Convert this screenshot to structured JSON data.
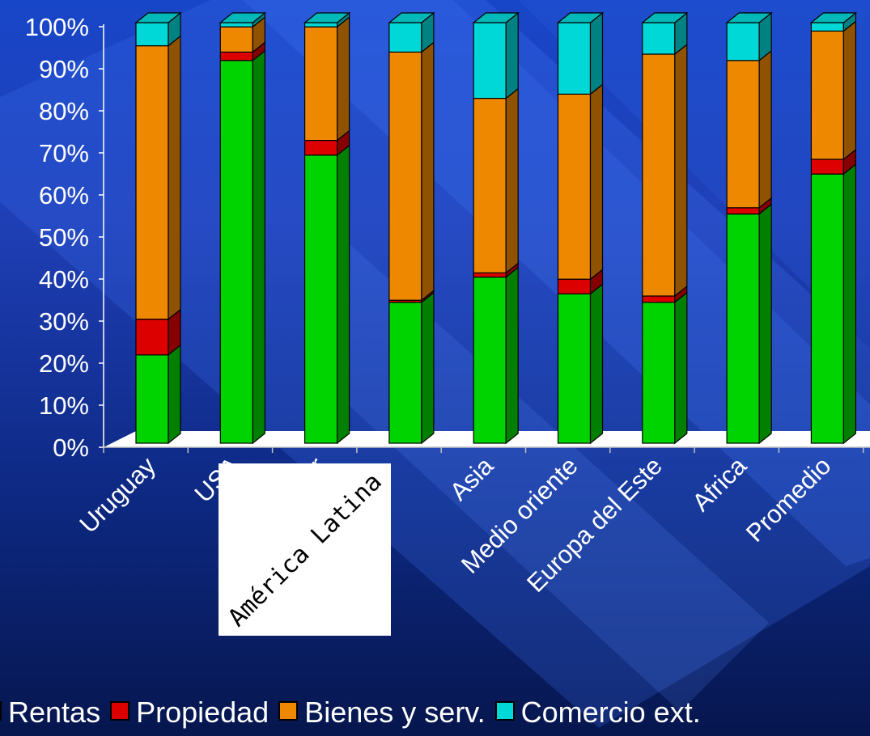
{
  "chart_data": {
    "type": "bar",
    "stacked": true,
    "normalized": true,
    "style": "3d",
    "categories": [
      "Uruguay",
      "USA",
      "Desarr",
      "América Latina",
      "Asia",
      "Medio oriente",
      "Europa del Este",
      "Africa",
      "Promedio"
    ],
    "series": [
      {
        "name": "Rentas",
        "color": "#00d400",
        "values": [
          21,
          91,
          68.5,
          33.5,
          39.5,
          35.5,
          33.5,
          54.5,
          64
        ]
      },
      {
        "name": "Propiedad",
        "color": "#dd0000",
        "values": [
          8.5,
          2,
          3.5,
          0.5,
          1,
          3.5,
          1.5,
          1.5,
          3.5
        ]
      },
      {
        "name": "Bienes y serv.",
        "color": "#ee8800",
        "values": [
          65,
          6,
          27,
          59,
          41.5,
          44,
          57.5,
          35,
          30.5
        ]
      },
      {
        "name": "Comercio ext.",
        "color": "#00d8d8",
        "values": [
          5.5,
          1,
          1,
          7,
          18,
          17,
          7.5,
          9,
          2
        ]
      }
    ],
    "ylim": [
      0,
      100
    ],
    "yticks": [
      "0%",
      "10%",
      "20%",
      "30%",
      "40%",
      "50%",
      "60%",
      "70%",
      "80%",
      "90%",
      "100%"
    ],
    "legend_position": "bottom",
    "overlay_label": "América Latina"
  }
}
